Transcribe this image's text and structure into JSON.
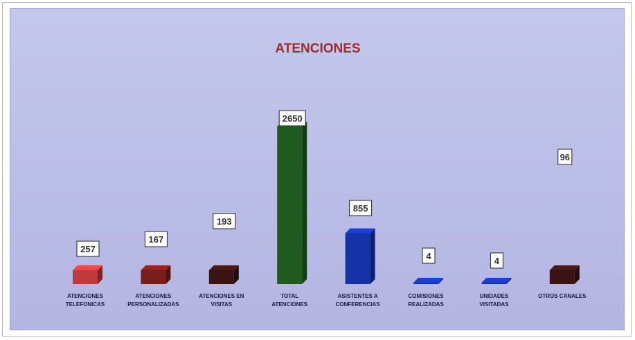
{
  "chart_data": {
    "type": "bar",
    "title": "ATENCIONES",
    "xlabel": "",
    "ylabel": "",
    "grid": false,
    "legend": "none",
    "ylim": [
      0,
      2650
    ],
    "categories": [
      [
        "ATENCIONES",
        "TELEFONICAS"
      ],
      [
        "ATENCIONES",
        "PERSONALIZADAS"
      ],
      [
        "ATENCIONES EN",
        "VISITAS"
      ],
      [
        "TOTAL",
        "ATENCIONES"
      ],
      [
        "ASISTENTES A",
        "CONFERENCIAS"
      ],
      [
        "COMISIONES",
        "REALIZADAS"
      ],
      [
        "UNIDADES",
        "VISITADAS"
      ],
      [
        "OTROS CANALES"
      ]
    ],
    "values": [
      257,
      167,
      193,
      2650,
      855,
      4,
      4,
      96
    ],
    "colors": [
      "#c0393b",
      "#7a1c1c",
      "#3a1414",
      "#1f5a1f",
      "#1433a8",
      "#1433a8",
      "#1433a8",
      "#3a1414"
    ]
  }
}
